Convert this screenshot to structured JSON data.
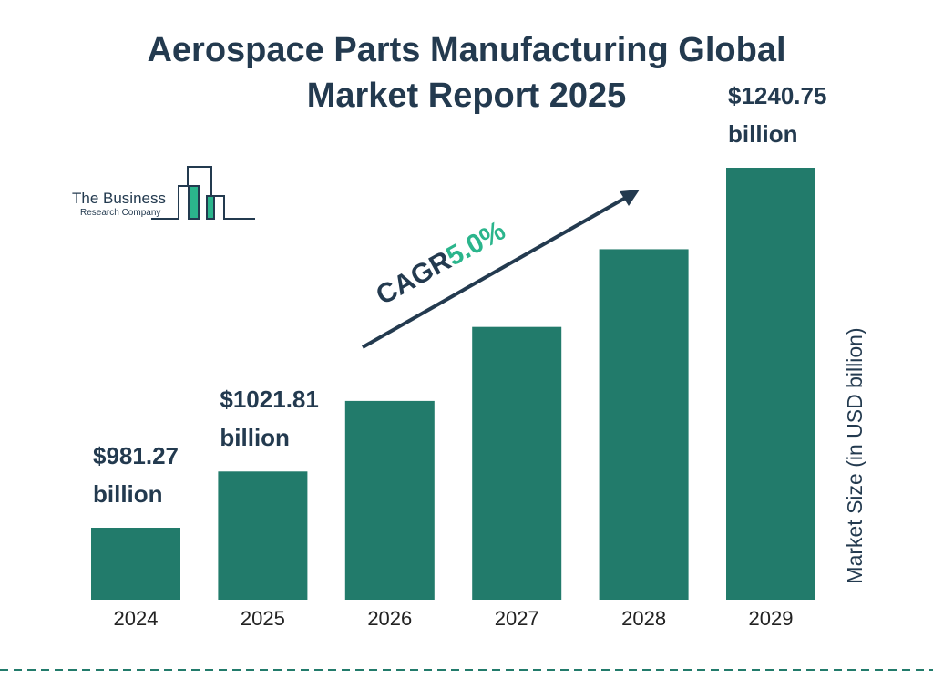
{
  "chart_data": {
    "type": "bar",
    "title": "Aerospace Parts Manufacturing Global Market Report 2025",
    "categories": [
      "2024",
      "2025",
      "2026",
      "2027",
      "2028",
      "2029"
    ],
    "values": [
      981.27,
      1021.81,
      1072.65,
      1126.0,
      1182.0,
      1240.75
    ],
    "value_labels": [
      "$981.27 billion",
      "$1021.81 billion",
      null,
      null,
      null,
      "$1240.75 billion"
    ],
    "color": "#227b6b",
    "y_axis_label": "Market Size (in USD billion)",
    "cagr_label": "CAGR",
    "cagr_value": "5.0%"
  },
  "logo": {
    "line1": "The Business",
    "line2": "Research Company"
  }
}
